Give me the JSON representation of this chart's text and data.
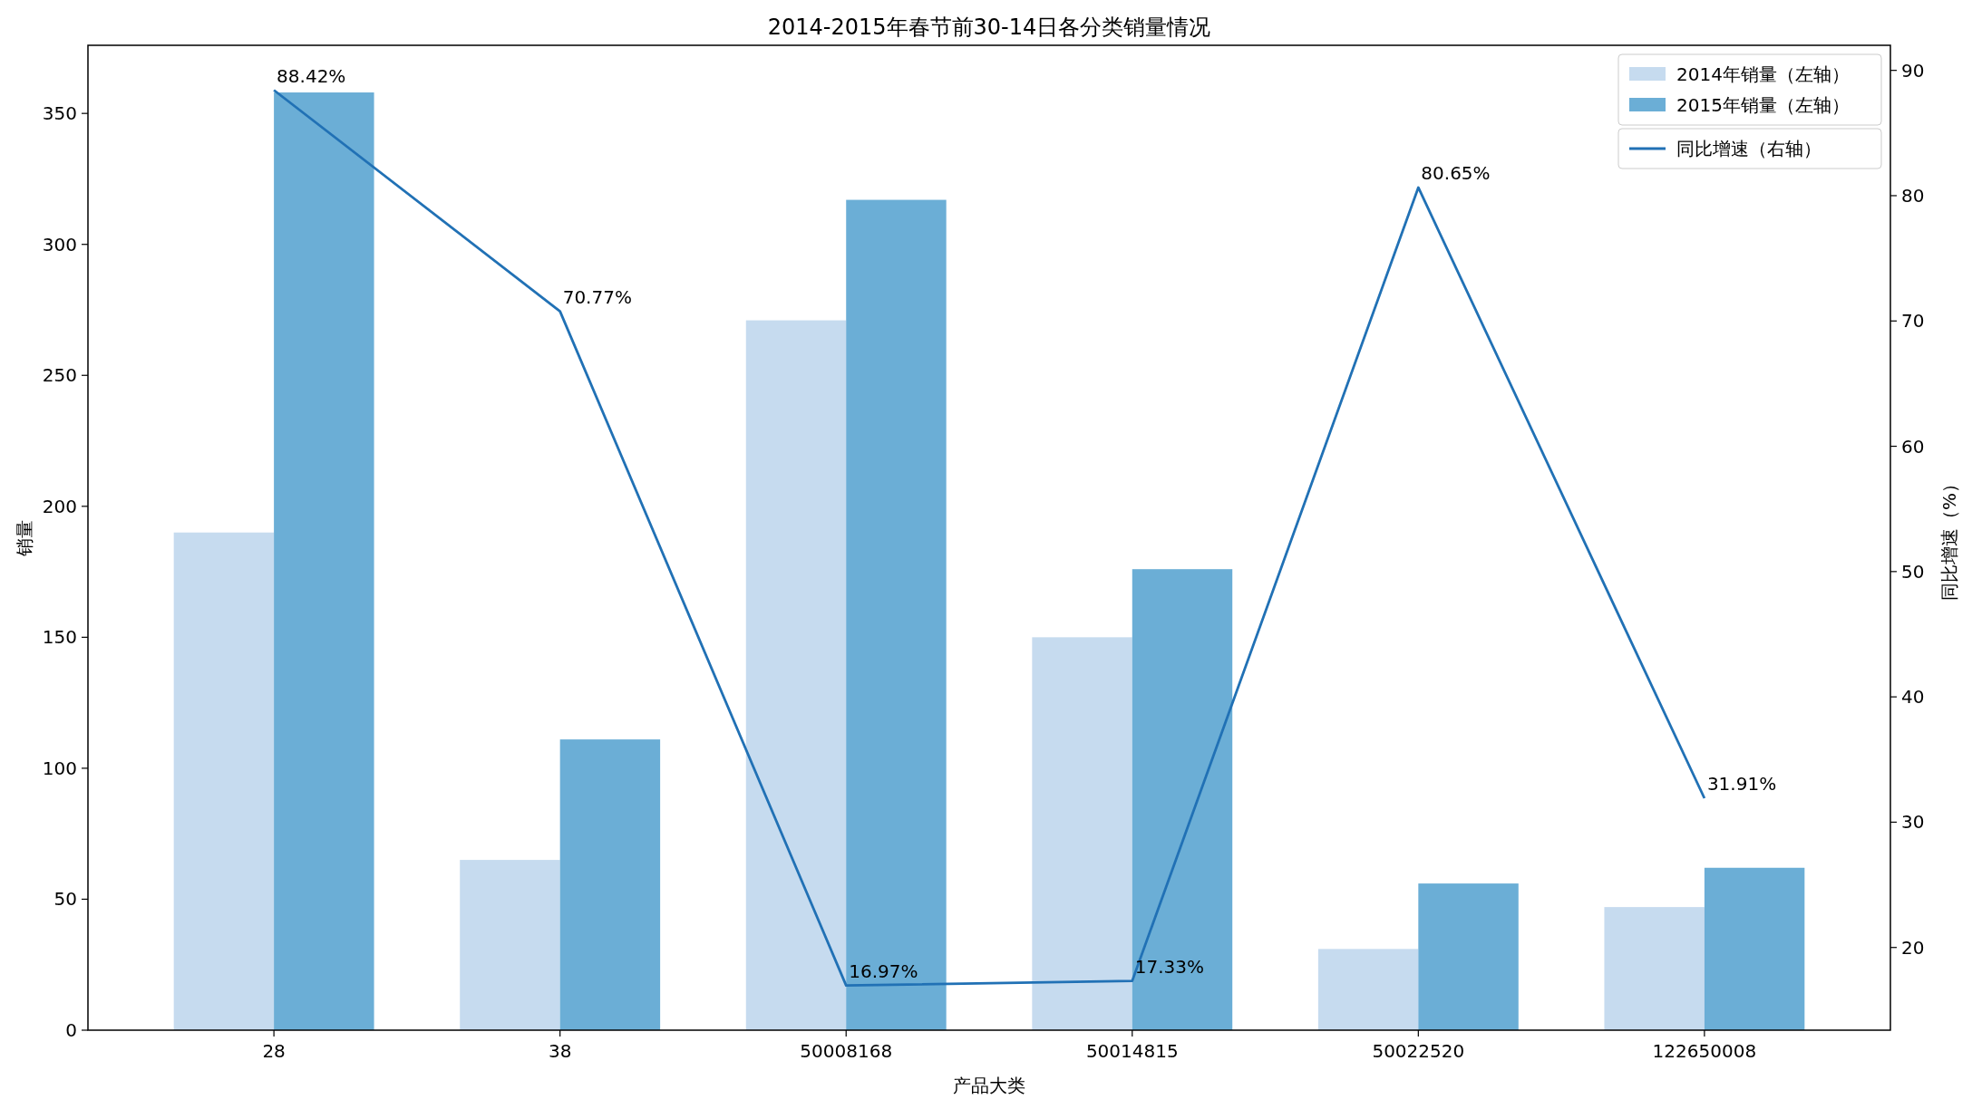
{
  "chart_data": {
    "type": "bar",
    "title": "2014-2015年春节前30-14日各分类销量情况",
    "xlabel": "产品大类",
    "ylabel": "销量",
    "y2label": "同比增速（%）",
    "categories": [
      "28",
      "38",
      "50008168",
      "50014815",
      "50022520",
      "122650008"
    ],
    "series": [
      {
        "name": "2014年销量（左轴）",
        "color": "#c6dbef",
        "values": [
          190,
          65,
          271,
          150,
          31,
          47
        ]
      },
      {
        "name": "2015年销量（左轴）",
        "color": "#6baed6",
        "values": [
          358,
          111,
          317,
          176,
          56,
          62
        ]
      },
      {
        "name": "同比增速（右轴）",
        "type": "line",
        "axis": "y2",
        "color": "#2171b5",
        "values": [
          88.42,
          70.77,
          16.97,
          17.33,
          80.65,
          31.91
        ],
        "value_labels": [
          "88.42%",
          "70.77%",
          "16.97%",
          "17.33%",
          "80.65%",
          "31.91%"
        ]
      }
    ],
    "ylim": [
      0,
      376
    ],
    "yticks": [
      0,
      50,
      100,
      150,
      200,
      250,
      300,
      350
    ],
    "y2lim": [
      13.4,
      92.0
    ],
    "y2ticks": [
      20,
      30,
      40,
      50,
      60,
      70,
      80,
      90
    ],
    "legend": "top right"
  }
}
